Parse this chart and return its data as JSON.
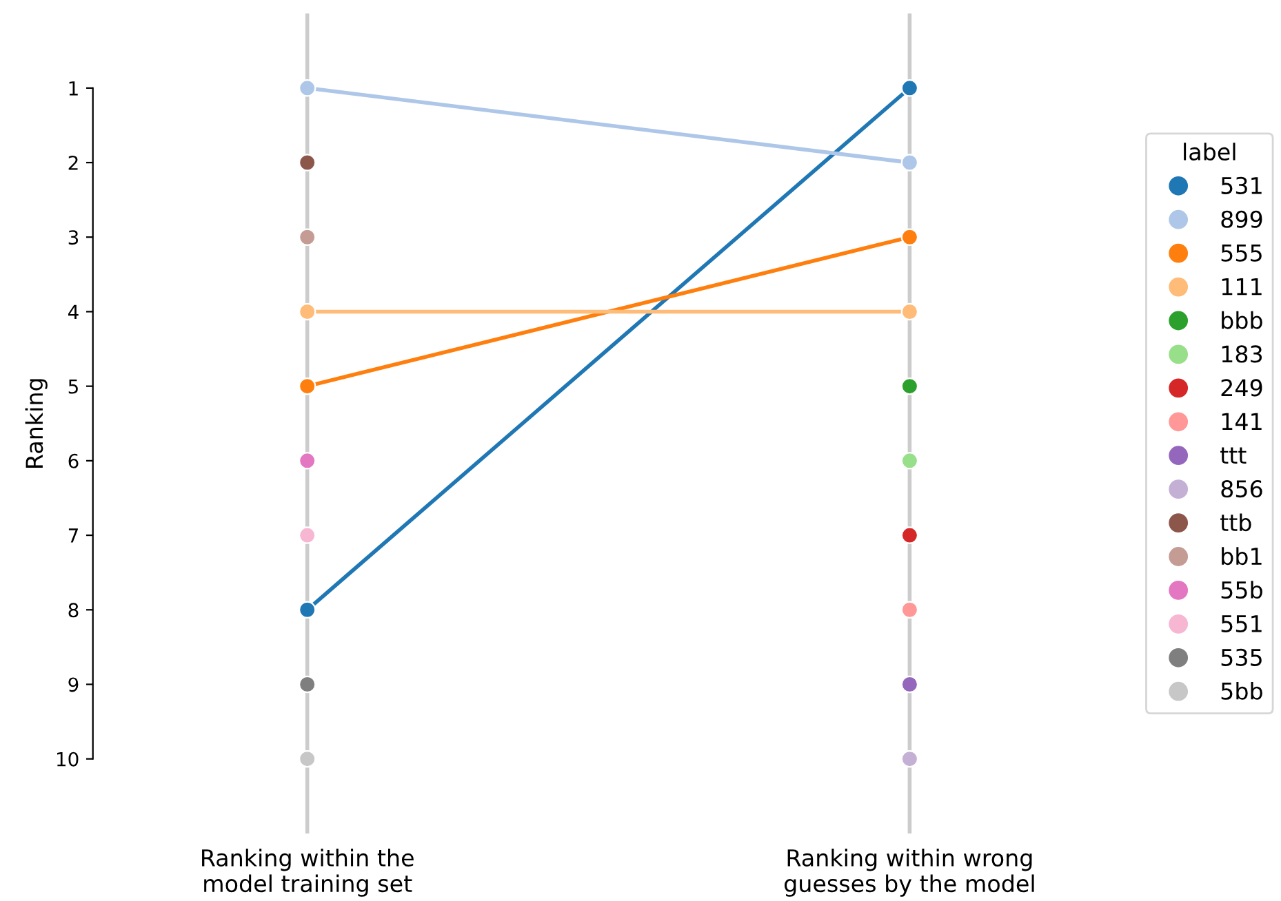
{
  "chart_data": {
    "type": "line",
    "ylabel": "Ranking",
    "legend_title": "label",
    "categories": [
      "Ranking within the\nmodel training set",
      "Ranking within wrong\nguesses by the model"
    ],
    "ylim": [
      11,
      0
    ],
    "yticks": [
      1,
      2,
      3,
      4,
      5,
      6,
      7,
      8,
      9,
      10
    ],
    "ref_lines": [
      {
        "axis": "x",
        "value": "Ranking within the\nmodel training set",
        "color": "#cccccc"
      },
      {
        "axis": "x",
        "value": "Ranking within wrong\nguesses by the model",
        "color": "#cccccc"
      }
    ],
    "legend": "right",
    "marker": "circle",
    "line_style": "solid",
    "series": [
      {
        "name": "531",
        "color": "#1f77b4",
        "values": [
          8,
          1
        ]
      },
      {
        "name": "899",
        "color": "#aec7e8",
        "values": [
          1,
          2
        ]
      },
      {
        "name": "555",
        "color": "#ff7f0e",
        "values": [
          5,
          3
        ]
      },
      {
        "name": "111",
        "color": "#ffbb78",
        "values": [
          4,
          4
        ]
      },
      {
        "name": "bbb",
        "color": "#2ca02c",
        "values": [
          null,
          5
        ]
      },
      {
        "name": "183",
        "color": "#98df8a",
        "values": [
          null,
          6
        ]
      },
      {
        "name": "249",
        "color": "#d62728",
        "values": [
          null,
          7
        ]
      },
      {
        "name": "141",
        "color": "#ff9896",
        "values": [
          null,
          8
        ]
      },
      {
        "name": "ttt",
        "color": "#9467bd",
        "values": [
          null,
          9
        ]
      },
      {
        "name": "856",
        "color": "#c5b0d5",
        "values": [
          null,
          10
        ]
      },
      {
        "name": "ttb",
        "color": "#8c564b",
        "values": [
          2,
          null
        ]
      },
      {
        "name": "bb1",
        "color": "#c49c94",
        "values": [
          3,
          null
        ]
      },
      {
        "name": "55b",
        "color": "#e377c2",
        "values": [
          6,
          null
        ]
      },
      {
        "name": "551",
        "color": "#f7b6d2",
        "values": [
          7,
          null
        ]
      },
      {
        "name": "535",
        "color": "#7f7f7f",
        "values": [
          9,
          null
        ]
      },
      {
        "name": "5bb",
        "color": "#c7c7c7",
        "values": [
          10,
          null
        ]
      }
    ]
  }
}
